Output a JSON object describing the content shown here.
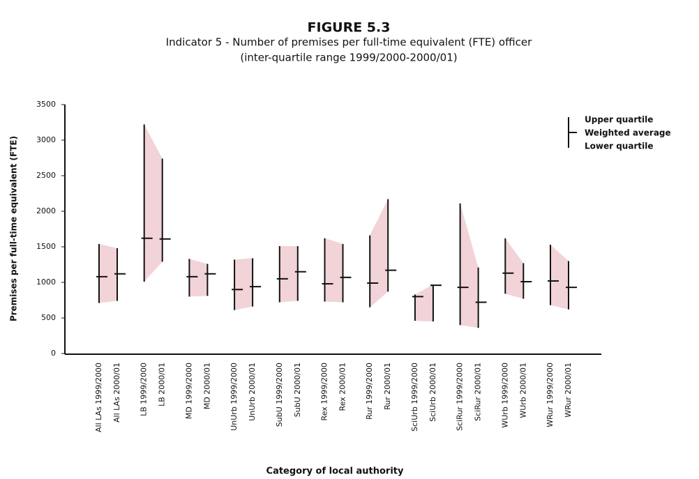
{
  "chart_data": {
    "type": "range",
    "title": "FIGURE 5.3",
    "subtitle": [
      "Indicator 5 - Number of premises per full-time equivalent (FTE) officer",
      "(inter-quartile range 1999/2000-2000/01)"
    ],
    "x_label": "Category of local authority",
    "y_label": "Premises per full-time equivalent (FTE)",
    "categories": [
      "All LAs 1999/2000",
      "All LAs 2000/01",
      "LB 1999/2000",
      "LB 2000/01",
      "MD 1999/2000",
      "MD 2000/01",
      "UnUrb 1999/2000",
      "UnUrb 2000/01",
      "SubU 1999/2000",
      "SubU 2000/01",
      "Rex 1999/2000",
      "Rex 2000/01",
      "Rur 1999/2000",
      "Rur 2000/01",
      "SciUrb 1999/2000",
      "SciUrb 2000/01",
      "SciRur 1999/2000",
      "SciRur 2000/01",
      "WUrb 1999/2000",
      "WUrb 2000/01",
      "WRur 1999/2000",
      "WRur 2000/01"
    ],
    "series": [
      {
        "name": "Upper quartile",
        "color": "#111111",
        "values": [
          1540,
          1480,
          3220,
          2740,
          1330,
          1260,
          1320,
          1340,
          1510,
          1510,
          1620,
          1540,
          1660,
          2170,
          830,
          970,
          2110,
          1210,
          1620,
          1270,
          1530,
          1300
        ]
      },
      {
        "name": "Weighted average",
        "color": "#111111",
        "values": [
          1080,
          1120,
          1620,
          1610,
          1080,
          1120,
          900,
          940,
          1050,
          1150,
          980,
          1070,
          990,
          1170,
          800,
          960,
          930,
          720,
          1130,
          1010,
          1020,
          930
        ]
      },
      {
        "name": "Lower quartile",
        "color": "#111111",
        "values": [
          710,
          740,
          1010,
          1290,
          800,
          810,
          610,
          660,
          720,
          740,
          730,
          720,
          650,
          870,
          460,
          450,
          400,
          360,
          840,
          770,
          680,
          620
        ]
      }
    ],
    "band_color": "#f1d3d8",
    "ylim": [
      0,
      3500
    ],
    "yticks": [
      0,
      500,
      1000,
      1500,
      2000,
      2500,
      3000,
      3500
    ]
  }
}
